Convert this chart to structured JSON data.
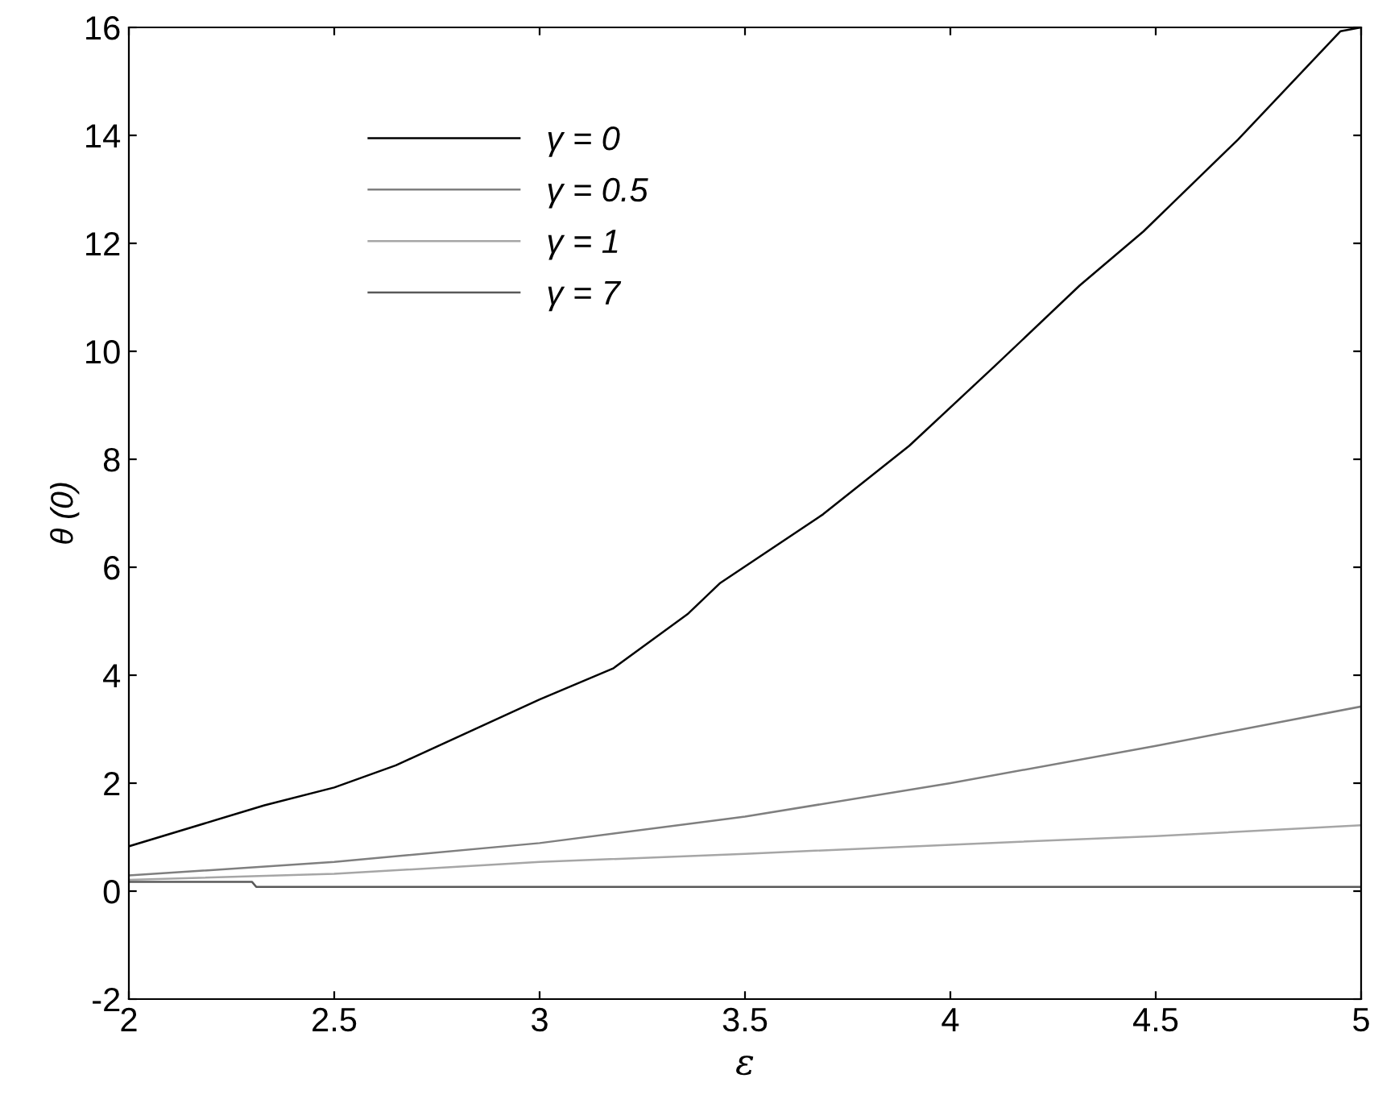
{
  "chart_data": {
    "type": "line",
    "xlabel": "ε",
    "ylabel": "θ (0)",
    "xlim": [
      2,
      5
    ],
    "ylim": [
      -2,
      16
    ],
    "xticks": [
      2,
      2.5,
      3,
      3.5,
      4,
      4.5,
      5
    ],
    "yticks": [
      -2,
      0,
      2,
      4,
      6,
      8,
      10,
      12,
      14,
      16
    ],
    "grid": false,
    "legend": "top left",
    "marker": "none",
    "line_style": "solid",
    "series": [
      {
        "name": "γ = 0",
        "color": "#000000",
        "x": [
          2,
          2.33,
          2.5,
          2.65,
          3,
          3.18,
          3.36,
          3.44,
          3.69,
          3.9,
          4.11,
          4.315,
          4.47,
          4.7,
          4.95,
          5
        ],
        "values": [
          0.83,
          1.59,
          1.92,
          2.33,
          3.55,
          4.13,
          5.13,
          5.71,
          6.98,
          8.25,
          9.74,
          11.22,
          12.22,
          13.92,
          15.93,
          16
        ]
      },
      {
        "name": "γ = 0.5",
        "color": "#7f7f7f",
        "x": [
          2,
          2.5,
          3,
          3.5,
          4,
          4.5,
          5
        ],
        "values": [
          0.29,
          0.54,
          0.89,
          1.38,
          2.0,
          2.69,
          3.42
        ]
      },
      {
        "name": "γ = 1",
        "color": "#a6a6a6",
        "x": [
          2,
          2.5,
          3,
          3.5,
          4,
          4.5,
          5
        ],
        "values": [
          0.21,
          0.32,
          0.54,
          0.69,
          0.86,
          1.02,
          1.22
        ]
      },
      {
        "name": "γ = 7",
        "color": "#595959",
        "x": [
          2,
          2.3,
          2.31,
          5
        ],
        "values": [
          0.17,
          0.17,
          0.08,
          0.08
        ]
      }
    ]
  }
}
